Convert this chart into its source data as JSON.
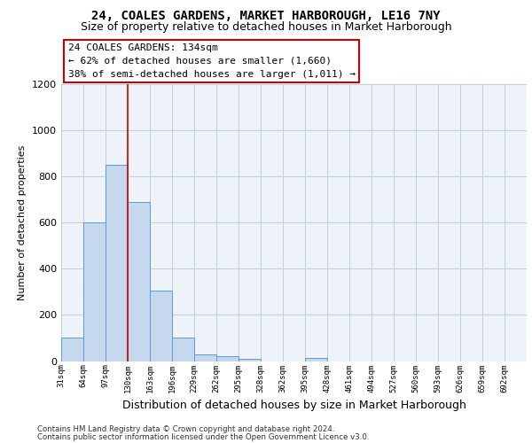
{
  "title": "24, COALES GARDENS, MARKET HARBOROUGH, LE16 7NY",
  "subtitle": "Size of property relative to detached houses in Market Harborough",
  "xlabel": "Distribution of detached houses by size in Market Harborough",
  "ylabel": "Number of detached properties",
  "footer_line1": "Contains HM Land Registry data © Crown copyright and database right 2024.",
  "footer_line2": "Contains public sector information licensed under the Open Government Licence v3.0.",
  "bar_labels": [
    "31sqm",
    "64sqm",
    "97sqm",
    "130sqm",
    "163sqm",
    "196sqm",
    "229sqm",
    "262sqm",
    "295sqm",
    "328sqm",
    "362sqm",
    "395sqm",
    "428sqm",
    "461sqm",
    "494sqm",
    "527sqm",
    "560sqm",
    "593sqm",
    "626sqm",
    "659sqm",
    "692sqm"
  ],
  "bar_values": [
    100,
    600,
    850,
    690,
    305,
    100,
    30,
    20,
    10,
    0,
    0,
    15,
    0,
    0,
    0,
    0,
    0,
    0,
    0,
    0,
    0
  ],
  "bar_color": "#c5d8ed",
  "bar_edge_color": "#5b9bd5",
  "vline_index": 3,
  "vline_color": "#cc0000",
  "ylim": [
    0,
    1200
  ],
  "yticks": [
    0,
    200,
    400,
    600,
    800,
    1000,
    1200
  ],
  "annotation_text": "24 COALES GARDENS: 134sqm\n← 62% of detached houses are smaller (1,660)\n38% of semi-detached houses are larger (1,011) →",
  "annotation_box_facecolor": "#ffffff",
  "annotation_border_color": "#cc0000",
  "plot_bg_color": "#eef3fa",
  "grid_color": "#c0cfe0",
  "title_fontsize": 10,
  "subtitle_fontsize": 9,
  "ylabel_fontsize": 8,
  "xlabel_fontsize": 9
}
